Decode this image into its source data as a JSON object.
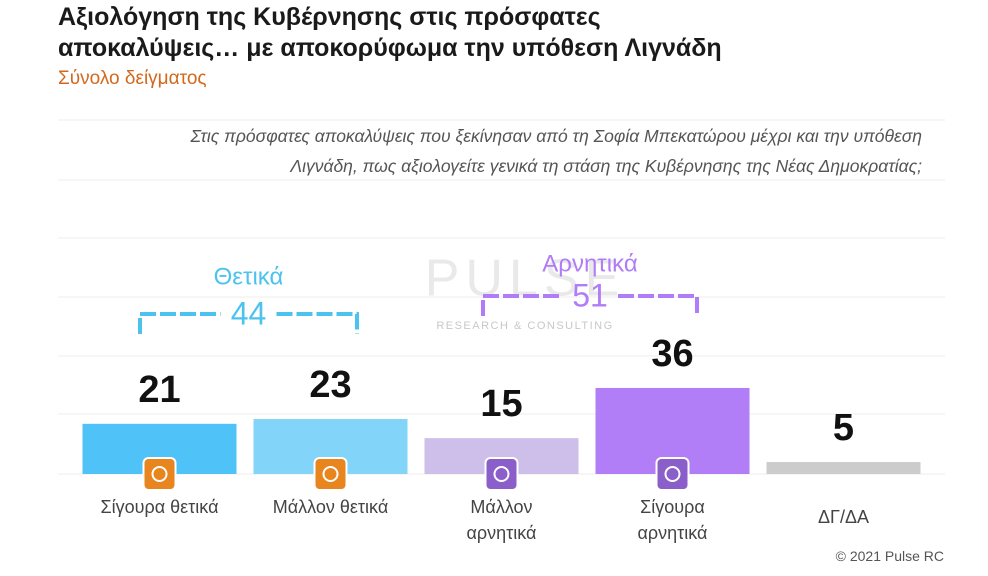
{
  "chart_data": {
    "type": "bar",
    "title": "Αξιολόγηση της Κυβέρνησης στις πρόσφατες αποκαλύψεις… με αποκορύφωμα την υπόθεση Λιγνάδη",
    "subtitle": "Σύνολο δείγματος",
    "question": "Στις πρόσφατες αποκαλύψεις που ξεκίνησαν από τη Σοφία Μπεκατώρου μέχρι και την υπόθεση Λιγνάδη, πως αξιολογείτε γενικά τη στάση της Κυβέρνησης της Νέας Δημοκρατίας;",
    "categories": [
      "Σίγουρα θετικά",
      "Μάλλον θετικά",
      "Μάλλον αρνητικά",
      "Σίγουρα αρνητικά",
      "ΔΓ/ΔΑ"
    ],
    "values": [
      21,
      23,
      15,
      36,
      5
    ],
    "colors": [
      "#4fc3f7",
      "#82d4f9",
      "#cdbfe9",
      "#b17ef7",
      "#cccccc"
    ],
    "groups": [
      {
        "label": "Θετικά",
        "value": 44,
        "color": "#4cc3ef"
      },
      {
        "label": "Αρνητικά",
        "value": 51,
        "color": "#b07cf7"
      }
    ],
    "watermark": {
      "name": "PULSE",
      "tagline": "RESEARCH & CONSULTING"
    },
    "copyright": "© 2021 Pulse RC"
  }
}
